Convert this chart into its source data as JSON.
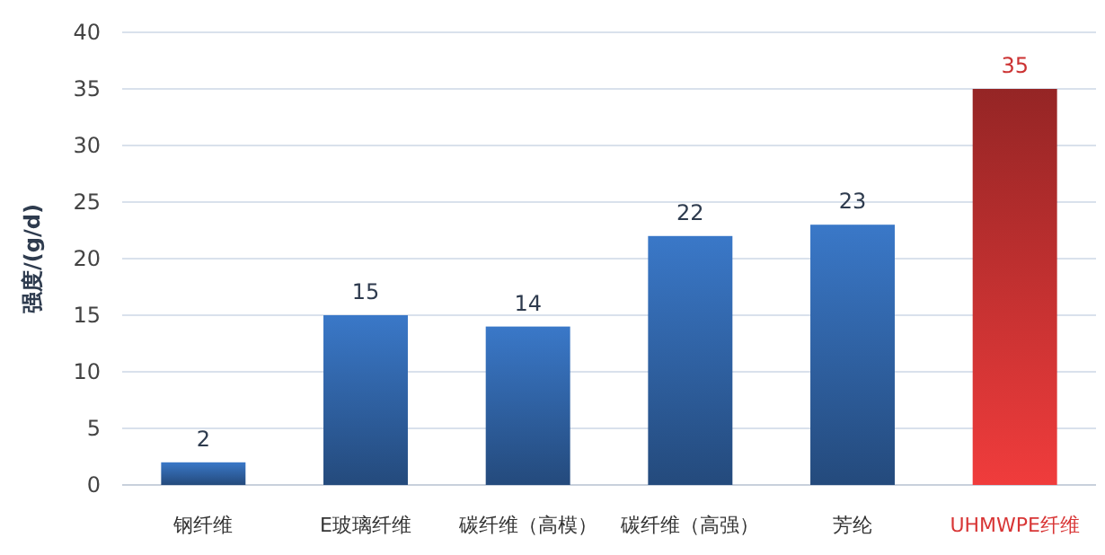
{
  "chart_data": {
    "type": "bar",
    "ylabel": "强度/(g/d)",
    "categories": [
      "钢纤维",
      "E玻璃纤维",
      "碳纤维（高模）",
      "碳纤维（高强）",
      "芳纶",
      "UHMWPE纤维"
    ],
    "values": [
      2,
      15,
      14,
      22,
      23,
      35
    ],
    "colors": [
      "#3a78c8",
      "#3a78c8",
      "#3a78c8",
      "#3a78c8",
      "#3a78c8",
      "#f03c3c"
    ],
    "ylim": [
      0,
      40
    ],
    "yticks": [
      0,
      5,
      10,
      15,
      20,
      25,
      30,
      35,
      40
    ],
    "grid": "y",
    "data_labels": true
  }
}
